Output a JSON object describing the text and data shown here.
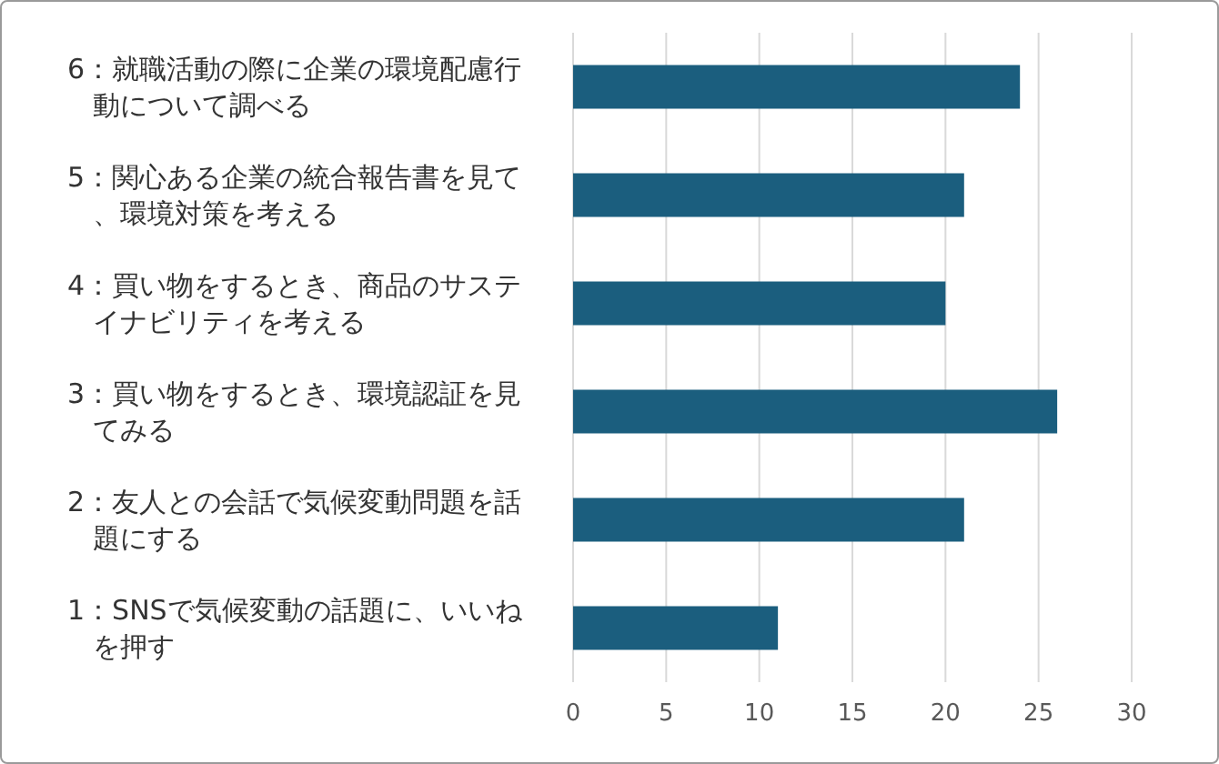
{
  "chart_data": {
    "type": "bar",
    "orientation": "horizontal",
    "categories": [
      "6：就職活動の際に企業の環境配慮行動について調べる",
      "5：関心ある企業の統合報告書を見て、環境対策を考える",
      "4：買い物をするとき、商品のサステイナビリティを考える",
      "3：買い物をするとき、環境認証を見てみる",
      "2：友人との会話で気候変動問題を話題にする",
      "1：SNSで気候変動の話題に、いいねを押す"
    ],
    "values": [
      24,
      21,
      20,
      26,
      21,
      11
    ],
    "color": "#1b5e7e",
    "xlim": [
      0,
      30
    ],
    "xticks": [
      0,
      5,
      10,
      15,
      20,
      25,
      30
    ],
    "grid": "x"
  }
}
